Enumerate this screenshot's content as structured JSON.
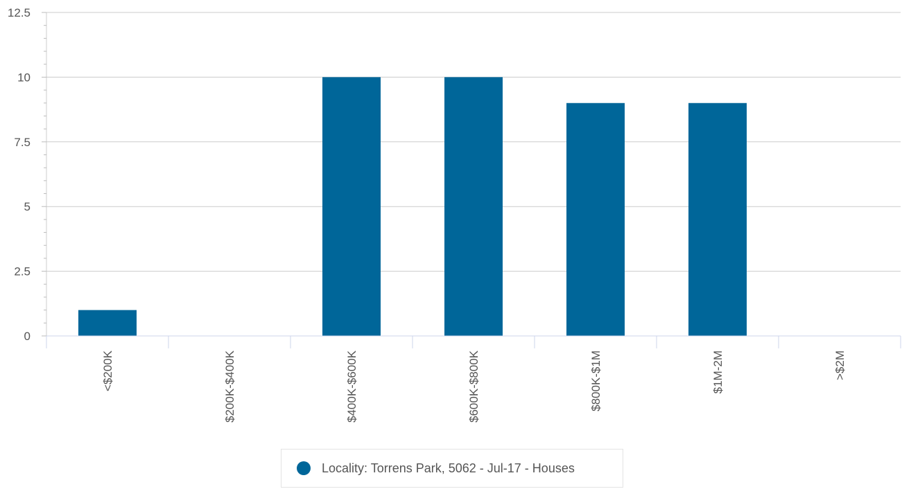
{
  "chart_data": {
    "type": "bar",
    "categories": [
      "<$200K",
      "$200K-$400K",
      "$400K-$600K",
      "$600K-$800K",
      "$800K-$1M",
      "$1M-2M",
      ">$2M"
    ],
    "series": [
      {
        "name": "Locality: Torrens Park, 5062 - Jul-17 - Houses",
        "values": [
          1,
          0,
          10,
          10,
          9,
          9,
          0
        ],
        "color": "#006699"
      }
    ],
    "ylim": [
      0,
      12.5
    ],
    "yticks": [
      0,
      2.5,
      5,
      7.5,
      10,
      12.5
    ],
    "ytick_labels": [
      "0",
      "2.5",
      "5",
      "7.5",
      "10",
      "12.5"
    ],
    "grid": true,
    "legend_position": "bottom-center",
    "title": "",
    "xlabel": "",
    "ylabel": ""
  },
  "legend": {
    "label": "Locality: Torrens Park, 5062 - Jul-17 - Houses",
    "color": "#006699"
  }
}
